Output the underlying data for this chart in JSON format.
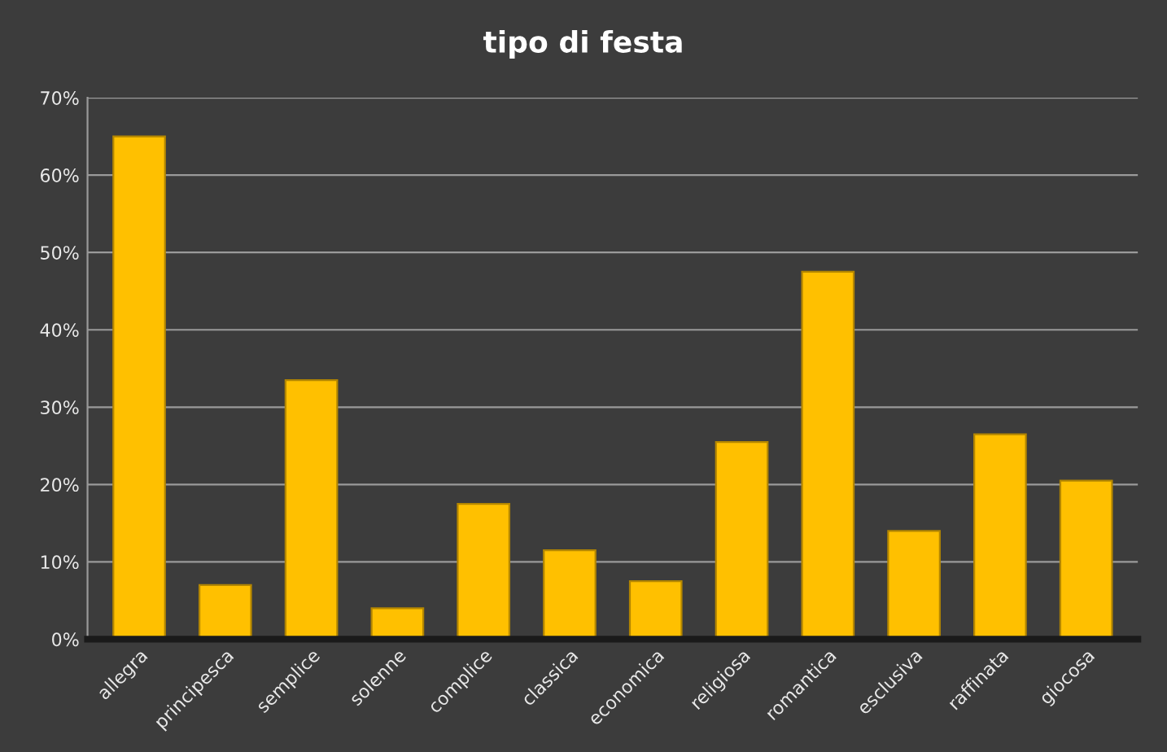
{
  "chart_data": {
    "type": "bar",
    "title": "tipo di festa",
    "categories": [
      "allegra",
      "principesca",
      "semplice",
      "solenne",
      "complice",
      "classica",
      "economica",
      "religiosa",
      "romantica",
      "esclusiva",
      "raffinata",
      "giocosa"
    ],
    "values": [
      65,
      7,
      33.5,
      4,
      17.5,
      11.5,
      7.5,
      25.5,
      47.5,
      14,
      26.5,
      20.5
    ],
    "color": "#ffc000",
    "ylim": [
      0,
      70
    ],
    "yticks": [
      {
        "value": 0,
        "label": "0%"
      },
      {
        "value": 10,
        "label": "10%"
      },
      {
        "value": 20,
        "label": "20%"
      },
      {
        "value": 30,
        "label": "30%"
      },
      {
        "value": 40,
        "label": "40%"
      },
      {
        "value": 50,
        "label": "50%"
      },
      {
        "value": 60,
        "label": "60%"
      },
      {
        "value": 70,
        "label": "70%"
      }
    ],
    "grid": "y"
  }
}
